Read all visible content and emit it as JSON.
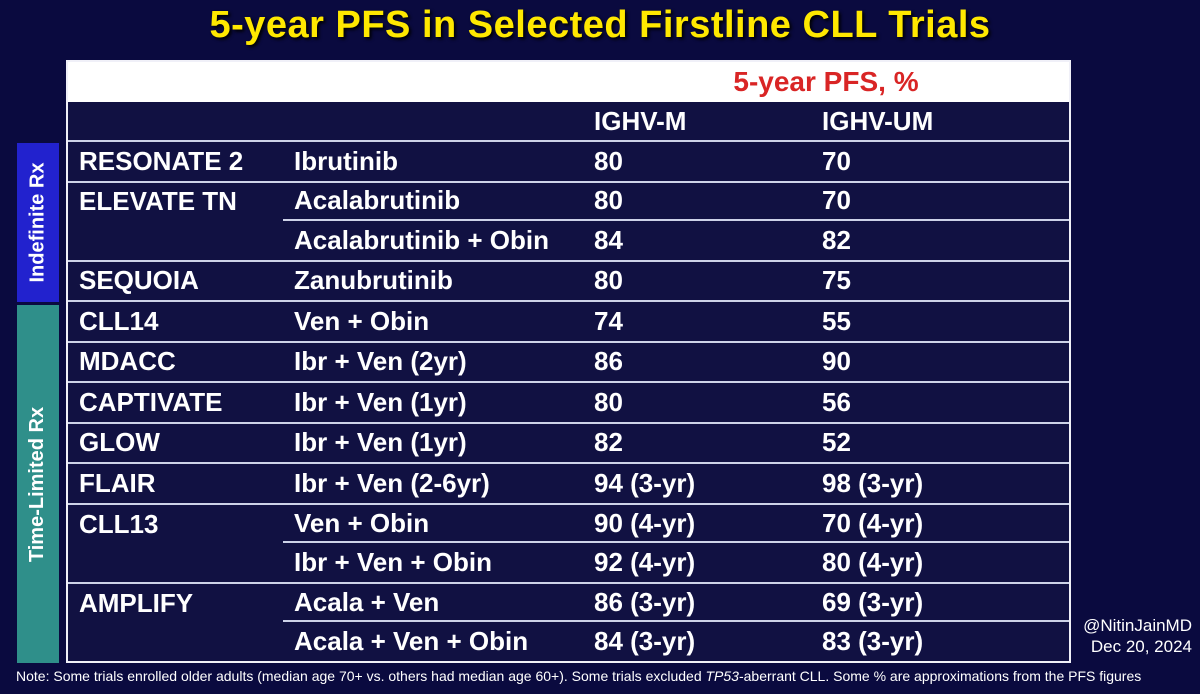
{
  "title": "5-year PFS in Selected Firstline CLL Trials",
  "colors": {
    "background": "#0a0a3f",
    "table_background": "#111142",
    "title_yellow": "#ffe800",
    "pfs_header_red": "#d92525",
    "indefinite_blue": "#2222ce",
    "time_limited_teal": "#2f8f8a",
    "grid_line": "#cdd2e8",
    "text_white": "#ffffff"
  },
  "sidebar": {
    "indefinite_label": "Indefinite Rx",
    "time_limited_label": "Time-Limited Rx"
  },
  "table": {
    "pfs_header": "5-year PFS, %",
    "col_headers": {
      "ighv_m": "IGHV-M",
      "ighv_um": "IGHV-UM"
    },
    "rows": [
      {
        "trial": "RESONATE 2",
        "treatment": "Ibrutinib",
        "ighv_m": "80",
        "ighv_um": "70",
        "group": "indefinite"
      },
      {
        "trial": "ELEVATE TN",
        "treatment": "Acalabrutinib",
        "ighv_m": "80",
        "ighv_um": "70",
        "group": "indefinite"
      },
      {
        "trial": "",
        "treatment": "Acalabrutinib + Obin",
        "ighv_m": "84",
        "ighv_um": "82",
        "group": "indefinite"
      },
      {
        "trial": "SEQUOIA",
        "treatment": "Zanubrutinib",
        "ighv_m": "80",
        "ighv_um": "75",
        "group": "indefinite"
      },
      {
        "trial": "CLL14",
        "treatment": "Ven + Obin",
        "ighv_m": "74",
        "ighv_um": "55",
        "group": "time-limited"
      },
      {
        "trial": "MDACC",
        "treatment": "Ibr + Ven (2yr)",
        "ighv_m": "86",
        "ighv_um": "90",
        "group": "time-limited"
      },
      {
        "trial": "CAPTIVATE",
        "treatment": "Ibr + Ven (1yr)",
        "ighv_m": "80",
        "ighv_um": "56",
        "group": "time-limited"
      },
      {
        "trial": "GLOW",
        "treatment": "Ibr + Ven (1yr)",
        "ighv_m": "82",
        "ighv_um": "52",
        "group": "time-limited"
      },
      {
        "trial": "FLAIR",
        "treatment": "Ibr + Ven (2-6yr)",
        "ighv_m": "94 (3-yr)",
        "ighv_um": "98 (3-yr)",
        "group": "time-limited"
      },
      {
        "trial": "CLL13",
        "treatment": "Ven + Obin",
        "ighv_m": "90 (4-yr)",
        "ighv_um": "70 (4-yr)",
        "group": "time-limited"
      },
      {
        "trial": "",
        "treatment": "Ibr + Ven + Obin",
        "ighv_m": "92 (4-yr)",
        "ighv_um": "80 (4-yr)",
        "group": "time-limited"
      },
      {
        "trial": "AMPLIFY",
        "treatment": "Acala + Ven",
        "ighv_m": "86 (3-yr)",
        "ighv_um": "69 (3-yr)",
        "group": "time-limited"
      },
      {
        "trial": "",
        "treatment": "Acala + Ven + Obin",
        "ighv_m": "84 (3-yr)",
        "ighv_um": "83 (3-yr)",
        "group": "time-limited"
      }
    ]
  },
  "attribution": {
    "handle": "@NitinJainMD",
    "date": "Dec 20, 2024"
  },
  "note": {
    "before": "Note: Some trials enrolled older adults (median age 70+ vs. others had median age 60+). Some trials excluded ",
    "italic": "TP53",
    "after": "-aberrant CLL. Some % are approximations from the PFS figures"
  }
}
